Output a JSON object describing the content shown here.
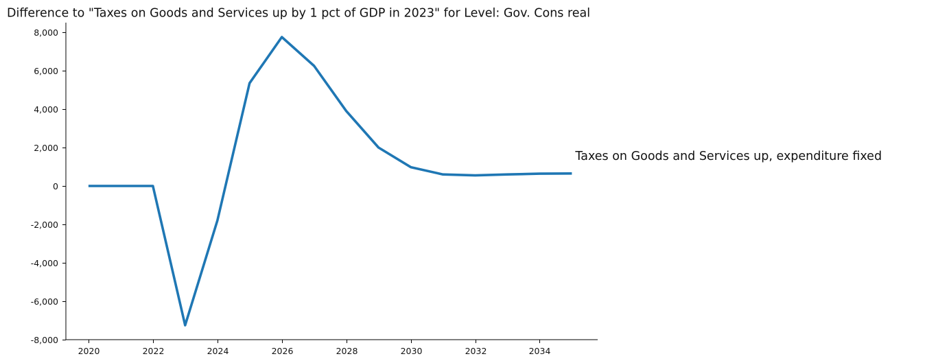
{
  "chart_data": {
    "type": "line",
    "title": "Difference to \"Taxes on Goods and Services up by 1 pct of GDP in 2023\" for Level: Gov. Cons real",
    "xlabel": "",
    "ylabel": "",
    "x": [
      2020,
      2021,
      2022,
      2023,
      2024,
      2025,
      2026,
      2027,
      2028,
      2029,
      2030,
      2031,
      2032,
      2033,
      2034,
      2035
    ],
    "xlim": [
      2019.3,
      2035.8
    ],
    "ylim": [
      -8000,
      8500
    ],
    "x_ticks": [
      2020,
      2022,
      2024,
      2026,
      2028,
      2030,
      2032,
      2034
    ],
    "x_tick_labels": [
      "2020",
      "2022",
      "2024",
      "2026",
      "2028",
      "2030",
      "2032",
      "2034"
    ],
    "y_ticks": [
      -8000,
      -6000,
      -4000,
      -2000,
      0,
      2000,
      4000,
      6000,
      8000
    ],
    "y_tick_labels": [
      "-8,000",
      "-6,000",
      "-4,000",
      "-2,000",
      "0",
      "2,000",
      "4,000",
      "6,000",
      "8,000"
    ],
    "grid": false,
    "legend": "none",
    "series": [
      {
        "name": "Taxes on Goods and Services up, expenditure fixed",
        "color": "#1f77b4",
        "values": [
          0,
          0,
          0,
          -7250,
          -1800,
          5350,
          7750,
          6250,
          3900,
          2000,
          980,
          600,
          550,
          600,
          640,
          650
        ]
      }
    ]
  }
}
